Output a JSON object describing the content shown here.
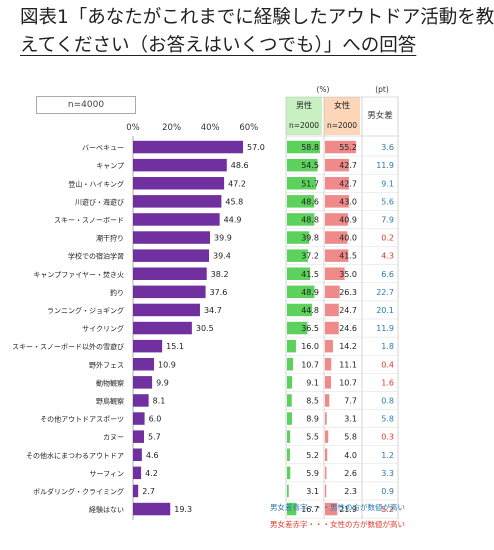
{
  "title": {
    "line1": "図表1「あなたがこれまでに経験したアウトドア活動を教",
    "line2": "えてください（お答えはいくつでも）」への回答"
  },
  "sample_label": "n=4000",
  "legend": {
    "blue": "男女差青字・・・男性の方が数値が高い",
    "red": "男女差赤字・・・女性の方が数値が高い"
  },
  "colors": {
    "total_bar": "#7030a0",
    "male_bar": "#5cd15c",
    "female_bar": "#f08a8a",
    "male_header": "#c8f0c0",
    "female_header": "#fbd6b8",
    "diff_male_higher": "#2a7ab0",
    "diff_female_higher": "#e0392a"
  },
  "chart_data": {
    "type": "bar",
    "orientation": "horizontal",
    "xlim": [
      0,
      60
    ],
    "xticks": [
      "0%",
      "20%",
      "40%",
      "60%"
    ],
    "tick_values": [
      0,
      20,
      40,
      60
    ],
    "categories": [
      "バーベキュー",
      "キャンプ",
      "登山・ハイキング",
      "川遊び・海遊び",
      "スキー・スノーボード",
      "潮干狩り",
      "学校での宿泊学習",
      "キャンプファイヤー・焚き火",
      "釣り",
      "ランニング・ジョギング",
      "サイクリング",
      "スキー・スノーボード以外の雪遊び",
      "野外フェス",
      "動物観察",
      "野鳥観察",
      "その他アウトドアスポーツ",
      "カヌー",
      "その他水にまつわるアウトドア",
      "サーフィン",
      "ボルダリング・クライミング",
      "経験はない"
    ],
    "total": [
      57.0,
      48.6,
      47.2,
      45.8,
      44.9,
      39.9,
      39.4,
      38.2,
      37.6,
      34.7,
      30.5,
      15.1,
      10.9,
      9.9,
      8.1,
      6.0,
      5.7,
      4.6,
      4.2,
      2.7,
      19.3
    ],
    "table": {
      "unit_percent": "(%)",
      "unit_pt": "(pt)",
      "male_header": "男性",
      "female_header": "女性",
      "male_n": "n=2000",
      "female_n": "n=2000",
      "diff_header": "男女差",
      "male": [
        58.8,
        54.5,
        51.7,
        48.6,
        48.8,
        39.8,
        37.2,
        41.5,
        48.9,
        44.8,
        36.5,
        16.0,
        10.7,
        9.1,
        8.5,
        8.9,
        5.5,
        5.2,
        5.9,
        3.1,
        16.7
      ],
      "female": [
        55.2,
        42.7,
        42.7,
        43.0,
        40.9,
        40.0,
        41.5,
        35.0,
        26.3,
        24.7,
        24.6,
        14.2,
        11.1,
        10.7,
        7.7,
        3.1,
        5.8,
        4.0,
        2.6,
        2.3,
        21.9
      ],
      "diff": [
        3.6,
        11.9,
        9.1,
        5.6,
        7.9,
        0.2,
        4.3,
        6.6,
        22.7,
        20.1,
        11.9,
        1.8,
        0.4,
        1.6,
        0.8,
        5.8,
        0.3,
        1.2,
        3.3,
        0.9,
        5.2
      ],
      "diff_higher": [
        "m",
        "m",
        "m",
        "m",
        "m",
        "f",
        "f",
        "m",
        "m",
        "m",
        "m",
        "m",
        "f",
        "f",
        "m",
        "m",
        "f",
        "m",
        "m",
        "m",
        "f"
      ]
    }
  }
}
